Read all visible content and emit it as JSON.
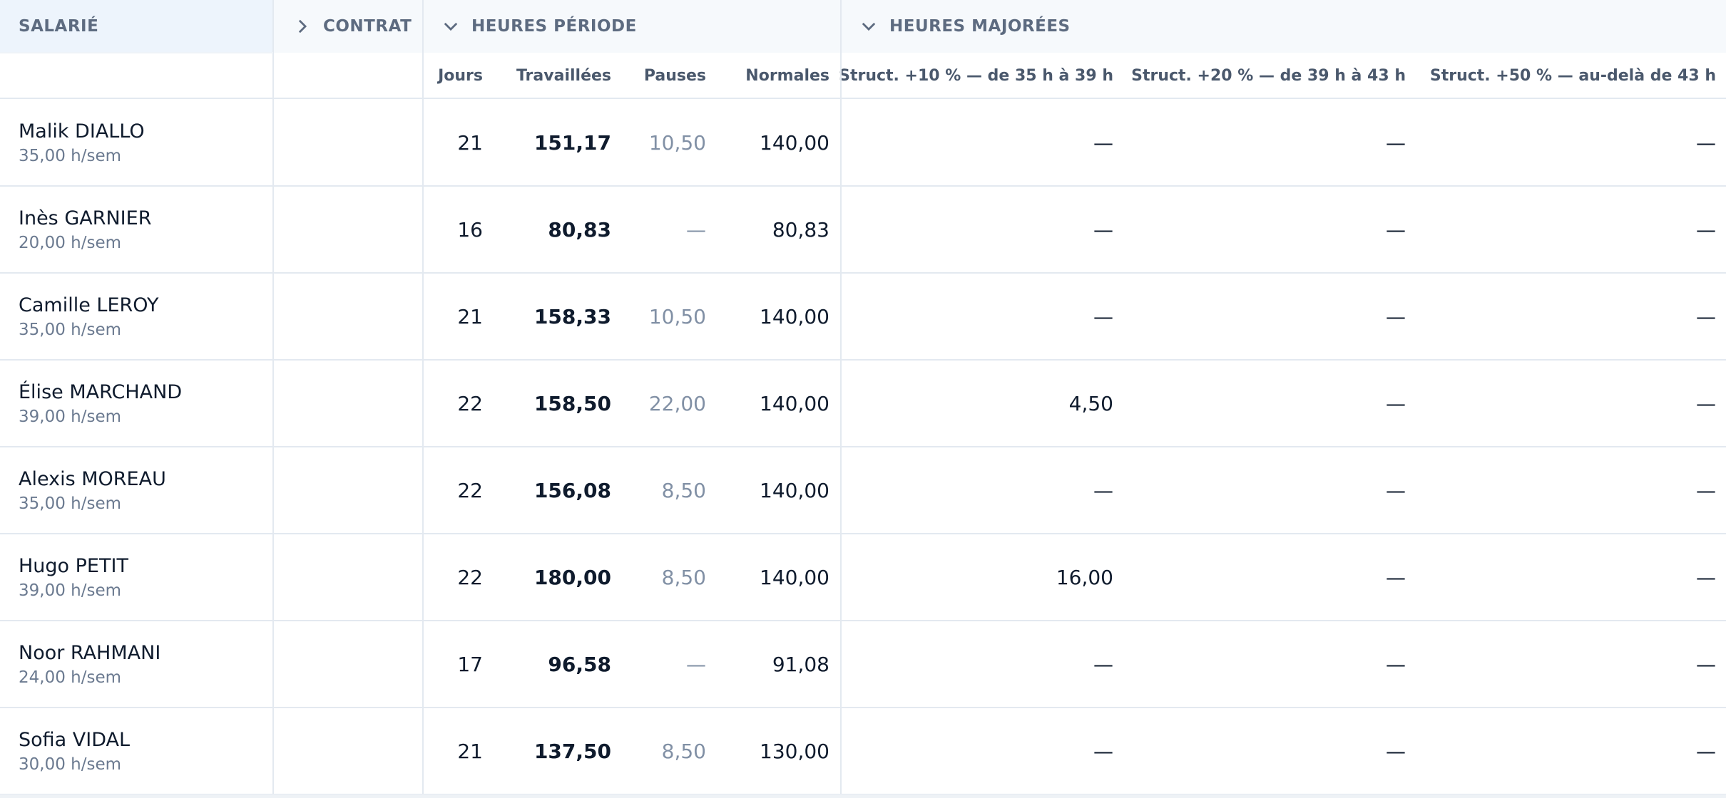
{
  "header": {
    "groups": [
      "SALARIÉ",
      "CONTRAT",
      "HEURES PÉRIODE",
      "HEURES MAJORÉES"
    ],
    "columns": [
      "Jours",
      "Travaillées",
      "Pauses",
      "Normales",
      "Struct. +10 % — de 35 h à 39 h",
      "Struct. +20 % — de 39 h à 43 h",
      "Struct. +50 % — au-delà de 43 h"
    ]
  },
  "rows": [
    {
      "name": "Malik DIALLO",
      "contract": "35,00 h/sem",
      "values": [
        "21",
        "151,17",
        "10,50",
        "140,00",
        "—",
        "—",
        "—"
      ]
    },
    {
      "name": "Inès GARNIER",
      "contract": "20,00 h/sem",
      "values": [
        "16",
        "80,83",
        "—",
        "80,83",
        "—",
        "—",
        "—"
      ]
    },
    {
      "name": "Camille LEROY",
      "contract": "35,00 h/sem",
      "values": [
        "21",
        "158,33",
        "10,50",
        "140,00",
        "—",
        "—",
        "—"
      ]
    },
    {
      "name": "Élise MARCHAND",
      "contract": "39,00 h/sem",
      "values": [
        "22",
        "158,50",
        "22,00",
        "140,00",
        "4,50",
        "—",
        "—"
      ]
    },
    {
      "name": "Alexis MOREAU",
      "contract": "35,00 h/sem",
      "values": [
        "22",
        "156,08",
        "8,50",
        "140,00",
        "—",
        "—",
        "—"
      ]
    },
    {
      "name": "Hugo PETIT",
      "contract": "39,00 h/sem",
      "values": [
        "22",
        "180,00",
        "8,50",
        "140,00",
        "16,00",
        "—",
        "—"
      ]
    },
    {
      "name": "Noor RAHMANI",
      "contract": "24,00 h/sem",
      "values": [
        "17",
        "96,58",
        "—",
        "91,08",
        "—",
        "—",
        "—"
      ]
    },
    {
      "name": "Sofia VIDAL",
      "contract": "30,00 h/sem",
      "values": [
        "21",
        "137,50",
        "8,50",
        "130,00",
        "—",
        "—",
        "—"
      ]
    }
  ]
}
